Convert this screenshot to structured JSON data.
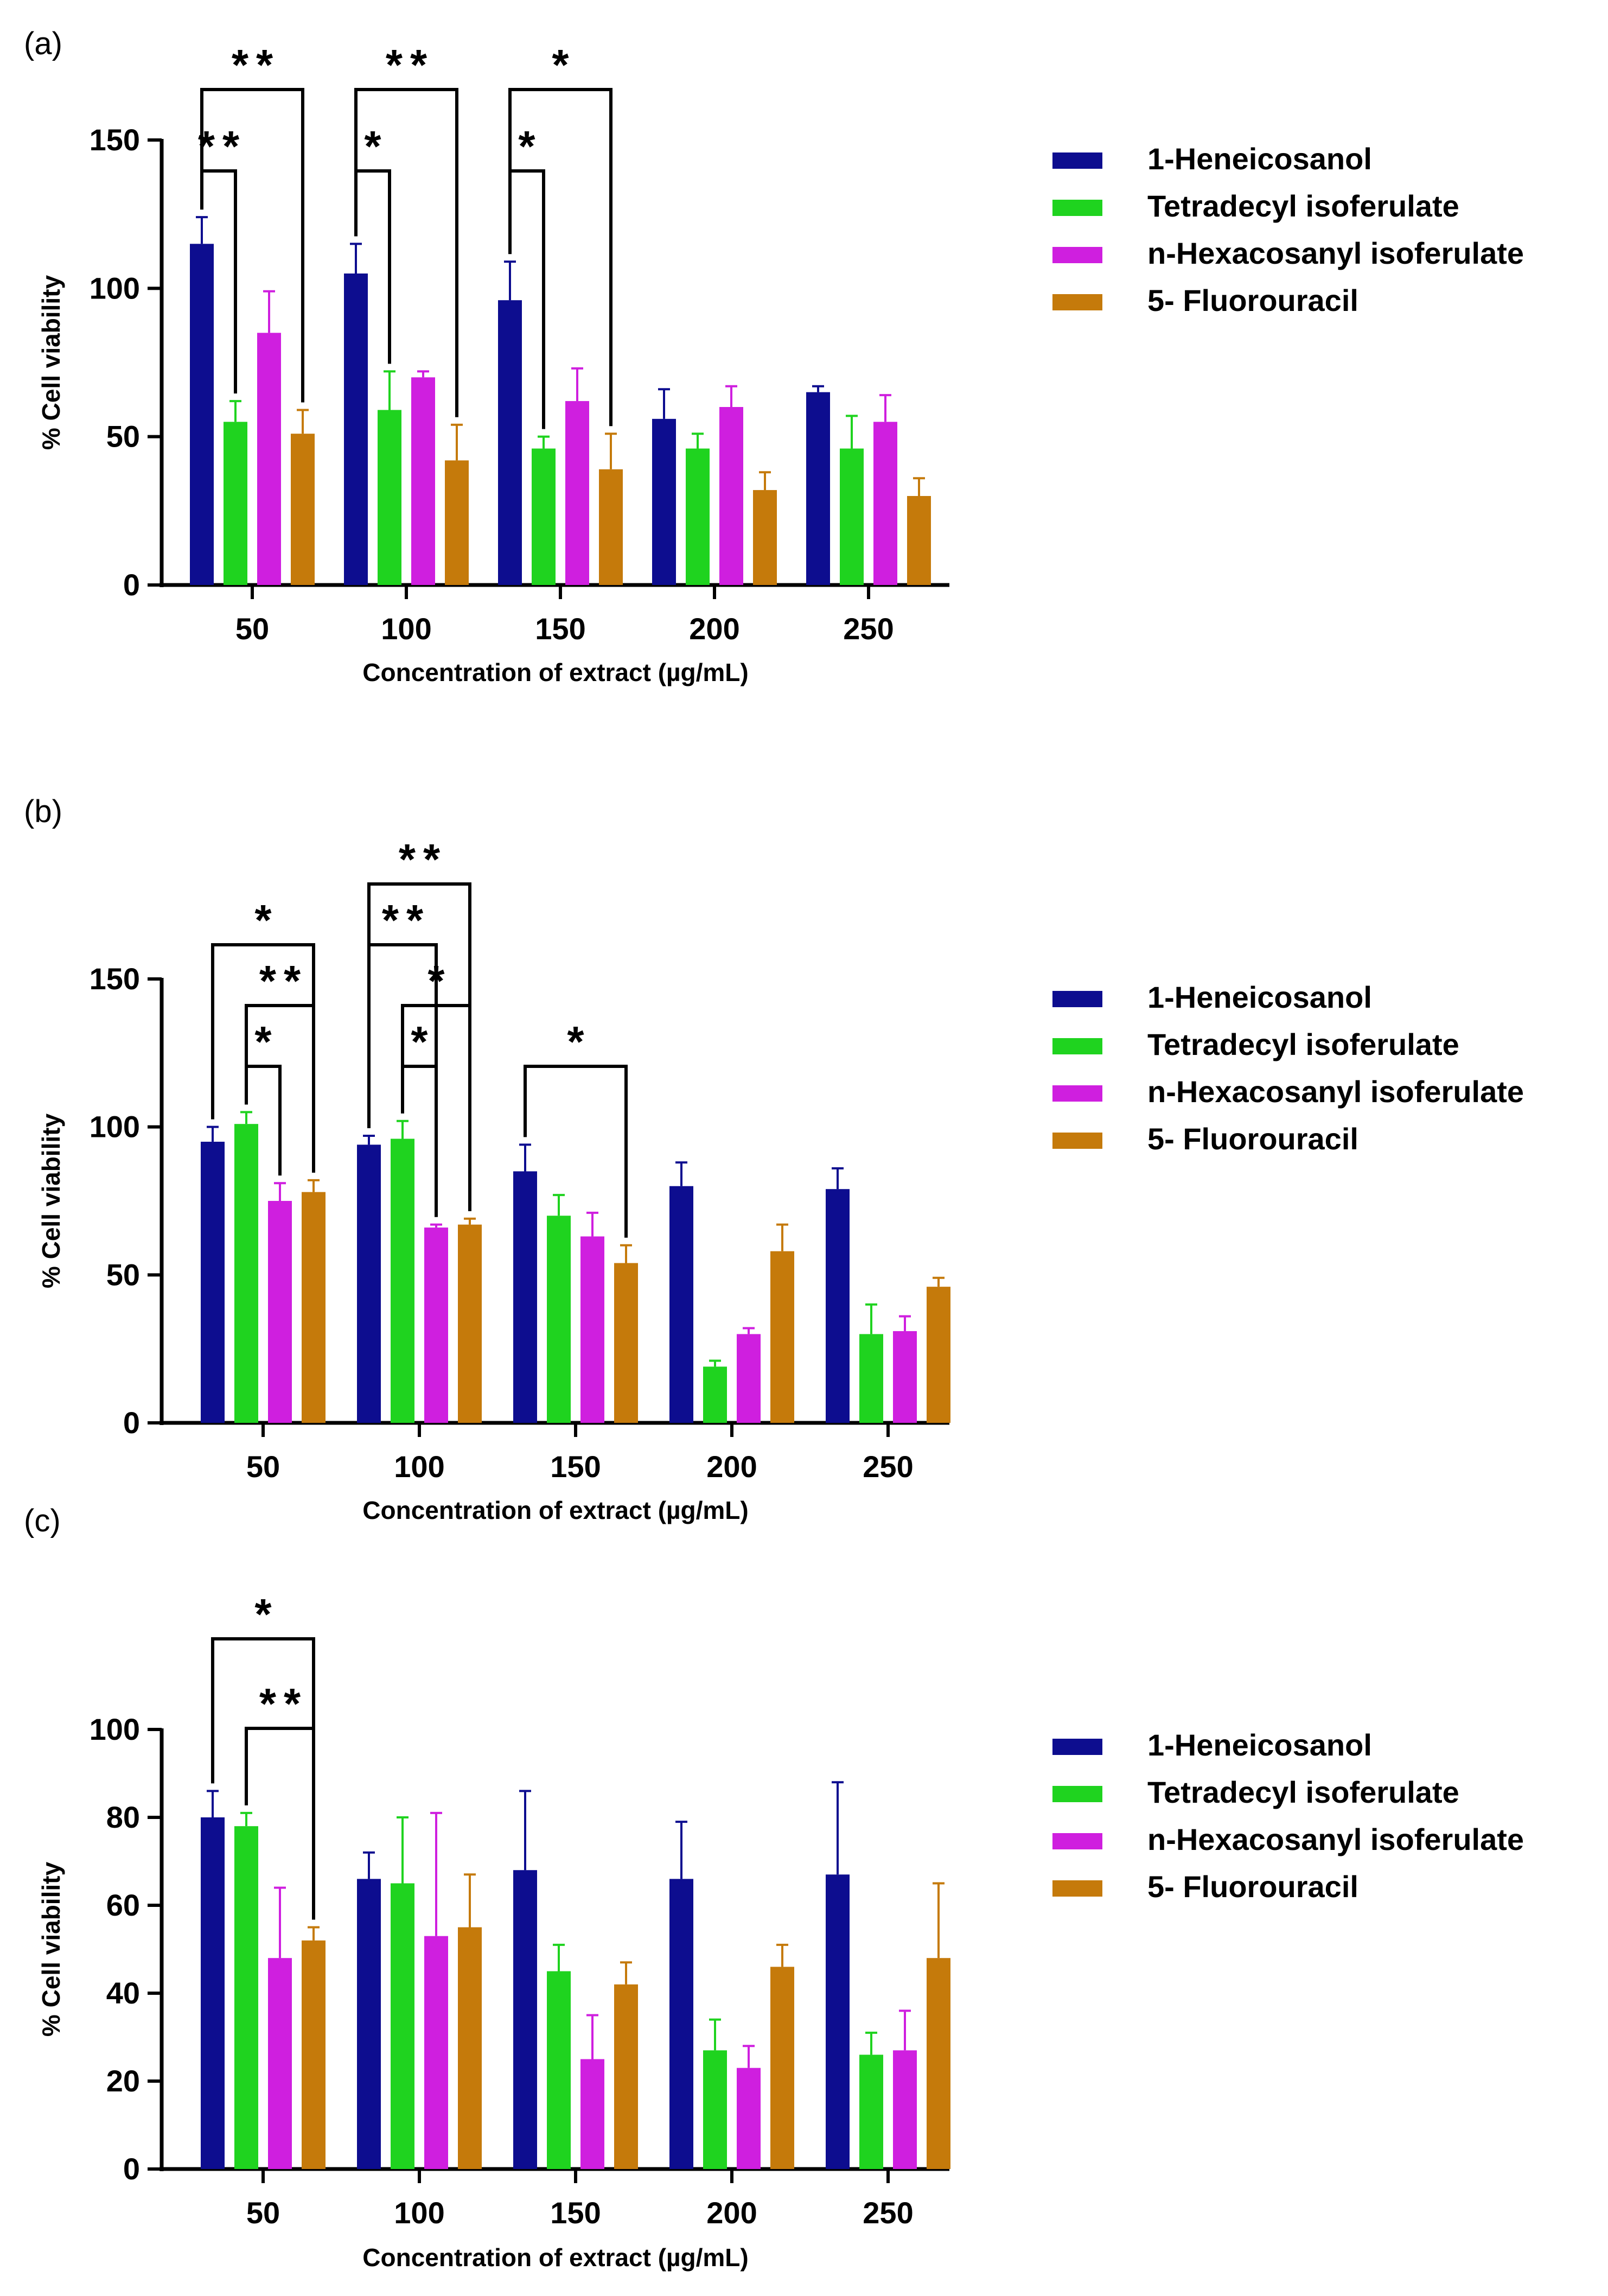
{
  "series_colors": [
    "#0d0d8f",
    "#1fd31f",
    "#cf1fdf",
    "#c57a0b"
  ],
  "chart_data": [
    {
      "panel": "(a)",
      "type": "bar",
      "xlabel": "Concentration of extract (µg/mL)",
      "ylabel": "% Cell viability",
      "ylim": [
        0,
        150
      ],
      "yticks": [
        "0",
        "50",
        "100",
        "150"
      ],
      "categories": [
        "50",
        "100",
        "150",
        "200",
        "250"
      ],
      "legend_position": "right",
      "series": [
        {
          "name": "1-Heneicosanol",
          "values": [
            115,
            105,
            96,
            56,
            65
          ],
          "errors": [
            9,
            10,
            13,
            10,
            2
          ]
        },
        {
          "name": "Tetradecyl isoferulate",
          "values": [
            55,
            59,
            46,
            46,
            46
          ],
          "errors": [
            7,
            13,
            4,
            5,
            11
          ]
        },
        {
          "name": "n-Hexacosanyl isoferulate",
          "values": [
            85,
            70,
            62,
            60,
            55
          ],
          "errors": [
            14,
            2,
            11,
            7,
            9
          ]
        },
        {
          "name": "5- Fluorouracil",
          "values": [
            51,
            42,
            39,
            32,
            30
          ],
          "errors": [
            8,
            12,
            12,
            6,
            6
          ]
        }
      ],
      "significance": [
        {
          "group": "50",
          "from": 0,
          "to": 1,
          "label": "**",
          "level": 0
        },
        {
          "group": "50",
          "from": 0,
          "to": 3,
          "label": "**",
          "level": 1
        },
        {
          "group": "100",
          "from": 0,
          "to": 1,
          "label": "*",
          "level": 0
        },
        {
          "group": "100",
          "from": 0,
          "to": 3,
          "label": "**",
          "level": 1
        },
        {
          "group": "150",
          "from": 0,
          "to": 1,
          "label": "*",
          "level": 0
        },
        {
          "group": "150",
          "from": 0,
          "to": 3,
          "label": "*",
          "level": 1
        }
      ]
    },
    {
      "panel": "(b)",
      "type": "bar",
      "xlabel": "Concentration of extract (µg/mL)",
      "ylabel": "% Cell viability",
      "ylim": [
        0,
        150
      ],
      "yticks": [
        "0",
        "50",
        "100",
        "150"
      ],
      "categories": [
        "50",
        "100",
        "150",
        "200",
        "250"
      ],
      "legend_position": "right",
      "series": [
        {
          "name": "1-Heneicosanol",
          "values": [
            95,
            94,
            85,
            80,
            79
          ],
          "errors": [
            5,
            3,
            9,
            8,
            7
          ]
        },
        {
          "name": "Tetradecyl isoferulate",
          "values": [
            101,
            96,
            70,
            19,
            30
          ],
          "errors": [
            4,
            6,
            7,
            2,
            10
          ]
        },
        {
          "name": "n-Hexacosanyl isoferulate",
          "values": [
            75,
            66,
            63,
            30,
            31
          ],
          "errors": [
            6,
            1,
            8,
            2,
            5
          ]
        },
        {
          "name": "5- Fluorouracil",
          "values": [
            78,
            67,
            54,
            58,
            46
          ],
          "errors": [
            4,
            2,
            6,
            9,
            3
          ]
        }
      ],
      "significance": [
        {
          "group": "50",
          "from": 1,
          "to": 2,
          "label": "*",
          "level": 0
        },
        {
          "group": "50",
          "from": 1,
          "to": 3,
          "label": "**",
          "level": 1
        },
        {
          "group": "50",
          "from": 0,
          "to": 3,
          "label": "*",
          "level": 2
        },
        {
          "group": "100",
          "from": 1,
          "to": 2,
          "label": "*",
          "level": 0
        },
        {
          "group": "100",
          "from": 1,
          "to": 3,
          "label": "*",
          "level": 1
        },
        {
          "group": "100",
          "from": 0,
          "to": 2,
          "label": "**",
          "level": 2
        },
        {
          "group": "100",
          "from": 0,
          "to": 3,
          "label": "**",
          "level": 3
        },
        {
          "group": "150",
          "from": 0,
          "to": 3,
          "label": "*",
          "level": 0
        }
      ]
    },
    {
      "panel": "(c)",
      "type": "bar",
      "xlabel": "Concentration of extract (µg/mL)",
      "ylabel": "% Cell viability",
      "ylim": [
        0,
        100
      ],
      "yticks": [
        "0",
        "20",
        "40",
        "60",
        "80",
        "100"
      ],
      "categories": [
        "50",
        "100",
        "150",
        "200",
        "250"
      ],
      "legend_position": "right",
      "series": [
        {
          "name": "1-Heneicosanol",
          "values": [
            80,
            66,
            68,
            66,
            67
          ],
          "errors": [
            6,
            6,
            18,
            13,
            21
          ]
        },
        {
          "name": "Tetradecyl isoferulate",
          "values": [
            78,
            65,
            45,
            27,
            26
          ],
          "errors": [
            3,
            15,
            6,
            7,
            5
          ]
        },
        {
          "name": "n-Hexacosanyl isoferulate",
          "values": [
            48,
            53,
            25,
            23,
            27
          ],
          "errors": [
            16,
            28,
            10,
            5,
            9
          ]
        },
        {
          "name": "5- Fluorouracil",
          "values": [
            52,
            55,
            42,
            46,
            48
          ],
          "errors": [
            3,
            12,
            5,
            5,
            17
          ]
        }
      ],
      "significance": [
        {
          "group": "50",
          "from": 1,
          "to": 3,
          "label": "**",
          "level": 0
        },
        {
          "group": "50",
          "from": 0,
          "to": 3,
          "label": "*",
          "level": 1
        }
      ]
    }
  ]
}
